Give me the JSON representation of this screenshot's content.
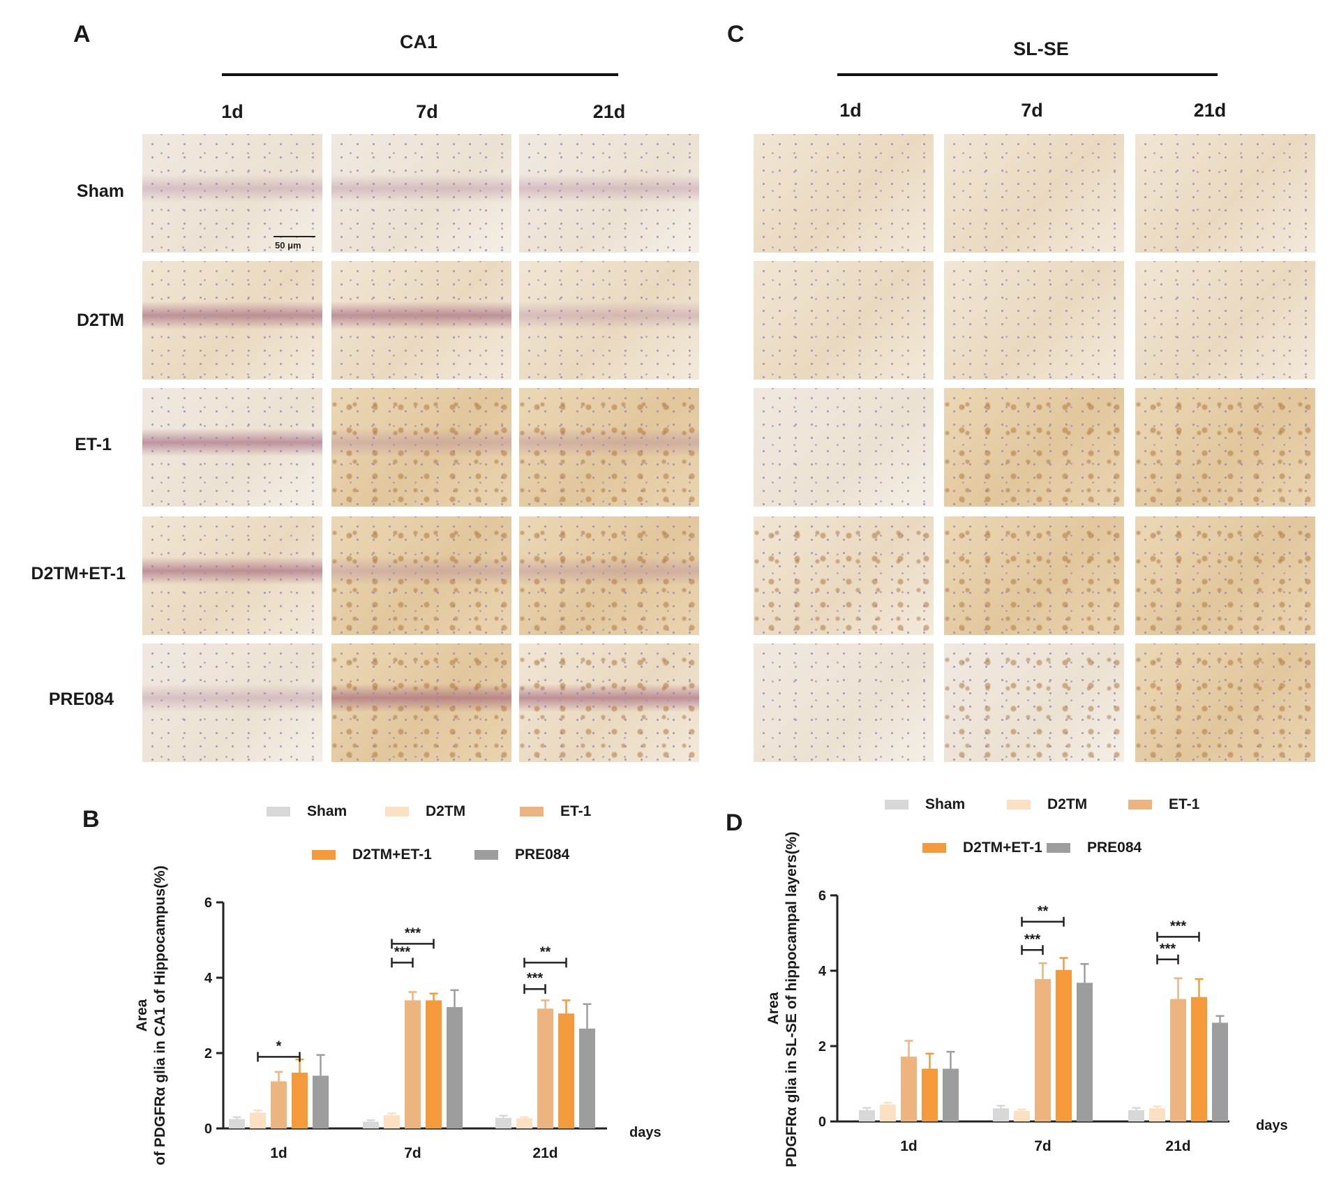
{
  "panels": {
    "A": {
      "letter": "A",
      "title": "CA1"
    },
    "C": {
      "letter": "C",
      "title": "SL-SE"
    },
    "B": {
      "letter": "B"
    },
    "D": {
      "letter": "D"
    }
  },
  "columns": [
    "1d",
    "7d",
    "21d"
  ],
  "rows": [
    "Sham",
    "D2TM",
    "ET-1",
    "D2TM+ET-1",
    "PRE084"
  ],
  "scale_bar": "50 μm",
  "legend_labels": [
    "Sham",
    "D2TM",
    "ET-1",
    "D2TM+ET-1",
    "PRE084"
  ],
  "colors": {
    "Sham": "#d8d8d8",
    "D2TM": "#fbe1c2",
    "ET-1": "#edb47f",
    "D2TM+ET-1": "#f49a3a",
    "PRE084": "#9d9d9d",
    "axis": "#222222"
  },
  "chart_data": [
    {
      "id": "B",
      "type": "bar",
      "ylabel": "Area of PDGFRα glia in  CA1 of Hippocampus(%)",
      "xlabel": "days",
      "categories": [
        "1d",
        "7d",
        "21d"
      ],
      "ylim": [
        0,
        6
      ],
      "yticks": [
        0,
        2,
        4,
        6
      ],
      "series": [
        {
          "name": "Sham",
          "values": [
            0.25,
            0.18,
            0.28
          ],
          "errors": [
            0.05,
            0.04,
            0.06
          ]
        },
        {
          "name": "D2TM",
          "values": [
            0.42,
            0.35,
            0.27
          ],
          "errors": [
            0.06,
            0.05,
            0.03
          ]
        },
        {
          "name": "ET-1",
          "values": [
            1.25,
            3.4,
            3.18
          ],
          "errors": [
            0.25,
            0.22,
            0.22
          ]
        },
        {
          "name": "D2TM+ET-1",
          "values": [
            1.48,
            3.4,
            3.05
          ],
          "errors": [
            0.35,
            0.18,
            0.35
          ]
        },
        {
          "name": "PRE084",
          "values": [
            1.4,
            3.22,
            2.65
          ],
          "errors": [
            0.55,
            0.45,
            0.65
          ]
        }
      ],
      "significance": [
        {
          "category": "1d",
          "from": "D2TM",
          "to": "D2TM+ET-1",
          "level": 1.9,
          "label": "*"
        },
        {
          "category": "7d",
          "from": "D2TM",
          "to": "ET-1",
          "level": 4.4,
          "label": "***"
        },
        {
          "category": "7d",
          "from": "D2TM",
          "to": "D2TM+ET-1",
          "level": 4.9,
          "label": "***"
        },
        {
          "category": "21d",
          "from": "D2TM",
          "to": "ET-1",
          "level": 3.7,
          "label": "***"
        },
        {
          "category": "21d",
          "from": "D2TM",
          "to": "D2TM+ET-1",
          "level": 4.4,
          "label": "**"
        }
      ]
    },
    {
      "id": "D",
      "type": "bar",
      "ylabel": "Area of PDGFRα glia in  SL-SE of hippocampal layers(%)",
      "xlabel": "days",
      "categories": [
        "1d",
        "7d",
        "21d"
      ],
      "ylim": [
        0,
        6
      ],
      "yticks": [
        0,
        2,
        4,
        6
      ],
      "series": [
        {
          "name": "Sham",
          "values": [
            0.3,
            0.35,
            0.3
          ],
          "errors": [
            0.06,
            0.07,
            0.06
          ]
        },
        {
          "name": "D2TM",
          "values": [
            0.45,
            0.28,
            0.35
          ],
          "errors": [
            0.05,
            0.04,
            0.05
          ]
        },
        {
          "name": "ET-1",
          "values": [
            1.72,
            3.78,
            3.25
          ],
          "errors": [
            0.42,
            0.42,
            0.55
          ]
        },
        {
          "name": "D2TM+ET-1",
          "values": [
            1.4,
            4.02,
            3.3
          ],
          "errors": [
            0.4,
            0.32,
            0.48
          ]
        },
        {
          "name": "PRE084",
          "values": [
            1.4,
            3.68,
            2.62
          ],
          "errors": [
            0.45,
            0.5,
            0.18
          ]
        }
      ],
      "significance": [
        {
          "category": "7d",
          "from": "D2TM",
          "to": "ET-1",
          "level": 4.55,
          "label": "***"
        },
        {
          "category": "7d",
          "from": "D2TM",
          "to": "D2TM+ET-1",
          "level": 5.3,
          "label": "**"
        },
        {
          "category": "21d",
          "from": "D2TM",
          "to": "ET-1",
          "level": 4.3,
          "label": "***"
        },
        {
          "category": "21d",
          "from": "D2TM",
          "to": "D2TM+ET-1",
          "level": 4.9,
          "label": "***"
        }
      ]
    }
  ]
}
